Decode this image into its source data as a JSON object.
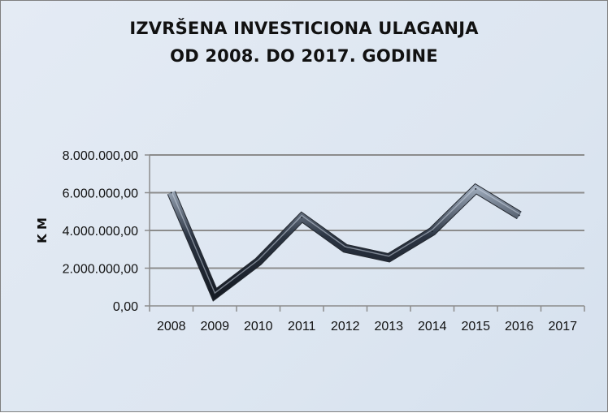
{
  "chart_data": {
    "type": "line",
    "title_line1": "IZVRŠENA INVESTICIONA ULAGANJA",
    "title_line2": "OD 2008. DO 2017. GODINE",
    "xlabel": "",
    "ylabel": "K M",
    "categories": [
      "2008",
      "2009",
      "2010",
      "2011",
      "2012",
      "2013",
      "2014",
      "2015",
      "2016",
      "2017"
    ],
    "values": [
      6000000,
      600000,
      2350000,
      4700000,
      3050000,
      2550000,
      3950000,
      6200000,
      4800000,
      null
    ],
    "ylim": [
      0,
      8000000
    ],
    "yticks": [
      0,
      2000000,
      4000000,
      6000000,
      8000000
    ],
    "ytick_labels": [
      "0,00",
      "2.000.000,00",
      "4.000.000,00",
      "6.000.000,00",
      "8.000.000,00"
    ],
    "grid": true,
    "legend": "none",
    "line_color": "#2b3442",
    "background": "#dde6f1"
  }
}
